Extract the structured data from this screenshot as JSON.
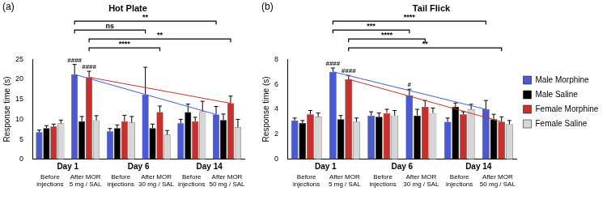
{
  "chart_data": [
    {
      "type": "bar",
      "panel": "(a)",
      "title": "Hot Plate",
      "y_label": "Response time (s)",
      "categories": [
        "Before injections",
        "After MOR 5 mg / SAL",
        "Before injections",
        "After MOR 30 mg / SAL",
        "Before injections",
        "After MOR 50 mg / SAL"
      ],
      "category_groups": [
        {
          "label": "Day 1",
          "from": 0,
          "to": 1
        },
        {
          "label": "Day 6",
          "from": 2,
          "to": 3
        },
        {
          "label": "Day 14",
          "from": 4,
          "to": 5
        }
      ],
      "series": [
        {
          "name": "Male Morphine",
          "color": "#4a5ad4",
          "values": [
            6.8,
            21.2,
            7.0,
            16.2,
            9.0,
            11.2
          ],
          "errors": [
            0.5,
            2.5,
            0.7,
            6.8,
            1.0,
            2.0
          ]
        },
        {
          "name": "Male Saline",
          "color": "#000000",
          "values": [
            7.8,
            9.5,
            7.8,
            7.8,
            11.8,
            9.8
          ],
          "errors": [
            0.6,
            1.2,
            0.8,
            1.0,
            2.0,
            1.5
          ]
        },
        {
          "name": "Female Morphine",
          "color": "#c9302c",
          "values": [
            8.2,
            20.5,
            9.5,
            11.8,
            9.5,
            14.0
          ],
          "errors": [
            0.6,
            1.5,
            1.5,
            1.5,
            1.0,
            1.8
          ]
        },
        {
          "name": "Female Saline",
          "color": "#d6d6d6",
          "values": [
            9.0,
            9.7,
            9.2,
            6.2,
            12.0,
            8.0
          ],
          "errors": [
            0.8,
            1.2,
            1.5,
            1.0,
            2.5,
            2.0
          ]
        }
      ],
      "marks": [
        {
          "series": "Male Morphine",
          "category": 1,
          "label": "####"
        },
        {
          "series": "Female Morphine",
          "category": 1,
          "label": "####"
        }
      ],
      "comparisons": [
        {
          "series": "Male Morphine",
          "from": 1,
          "to": 5,
          "label": "**"
        },
        {
          "series": "Male Morphine",
          "from": 1,
          "to": 3,
          "label": "ns"
        },
        {
          "series": "Female Morphine",
          "from": 1,
          "to": 5,
          "label": "**"
        },
        {
          "series": "Female Morphine",
          "from": 1,
          "to": 3,
          "label": "****"
        }
      ],
      "trends": [
        {
          "series": "Male Morphine",
          "from": 1,
          "to": 5
        },
        {
          "series": "Female Morphine",
          "from": 1,
          "to": 5
        }
      ],
      "ylim": [
        0,
        25
      ],
      "yticks": [
        0,
        5,
        10,
        15,
        20,
        25
      ],
      "grid": false
    },
    {
      "type": "bar",
      "panel": "(b)",
      "title": "Tail Flick",
      "y_label": "Response time (s)",
      "legend": "right",
      "categories": [
        "Before injections",
        "After MOR 5 mg / SAL",
        "Before injections",
        "After MOR 30 mg / SAL",
        "Before injections",
        "After MOR 50 mg / SAL"
      ],
      "category_groups": [
        {
          "label": "Day 1",
          "from": 0,
          "to": 1
        },
        {
          "label": "Day 6",
          "from": 2,
          "to": 3
        },
        {
          "label": "Day 14",
          "from": 4,
          "to": 5
        }
      ],
      "series": [
        {
          "name": "Male Morphine",
          "color": "#4a5ad4",
          "values": [
            3.1,
            7.0,
            3.5,
            5.1,
            3.0,
            4.0
          ],
          "errors": [
            0.2,
            0.3,
            0.3,
            0.5,
            0.3,
            0.7
          ]
        },
        {
          "name": "Male Saline",
          "color": "#000000",
          "values": [
            2.9,
            3.2,
            3.4,
            3.5,
            4.2,
            3.2
          ],
          "errors": [
            0.2,
            0.3,
            0.3,
            0.5,
            0.3,
            0.4
          ]
        },
        {
          "name": "Female Morphine",
          "color": "#c9302c",
          "values": [
            3.6,
            6.4,
            3.7,
            4.2,
            3.6,
            3.0
          ],
          "errors": [
            0.3,
            0.3,
            0.3,
            0.5,
            0.2,
            0.4
          ]
        },
        {
          "name": "Female Saline",
          "color": "#d6d6d6",
          "values": [
            3.4,
            3.0,
            3.5,
            3.7,
            4.0,
            2.8
          ],
          "errors": [
            0.3,
            0.3,
            0.4,
            0.4,
            0.4,
            0.3
          ]
        }
      ],
      "marks": [
        {
          "series": "Male Morphine",
          "category": 1,
          "label": "####"
        },
        {
          "series": "Female Morphine",
          "category": 1,
          "label": "####"
        },
        {
          "series": "Male Morphine",
          "category": 3,
          "label": "#"
        }
      ],
      "comparisons": [
        {
          "series": "Male Morphine",
          "from": 1,
          "to": 5,
          "label": "****"
        },
        {
          "series": "Male Morphine",
          "from": 1,
          "to": 3,
          "label": "***"
        },
        {
          "series": "Female Morphine",
          "from": 1,
          "to": 3,
          "label": "****"
        },
        {
          "series": "Female Morphine",
          "from": 1,
          "to": 5,
          "label": "**"
        }
      ],
      "trends": [
        {
          "series": "Male Morphine",
          "from": 1,
          "to": 5
        },
        {
          "series": "Female Morphine",
          "from": 1,
          "to": 5
        }
      ],
      "ylim": [
        0,
        8
      ],
      "yticks": [
        0,
        2,
        4,
        6,
        8
      ],
      "grid": false
    }
  ]
}
